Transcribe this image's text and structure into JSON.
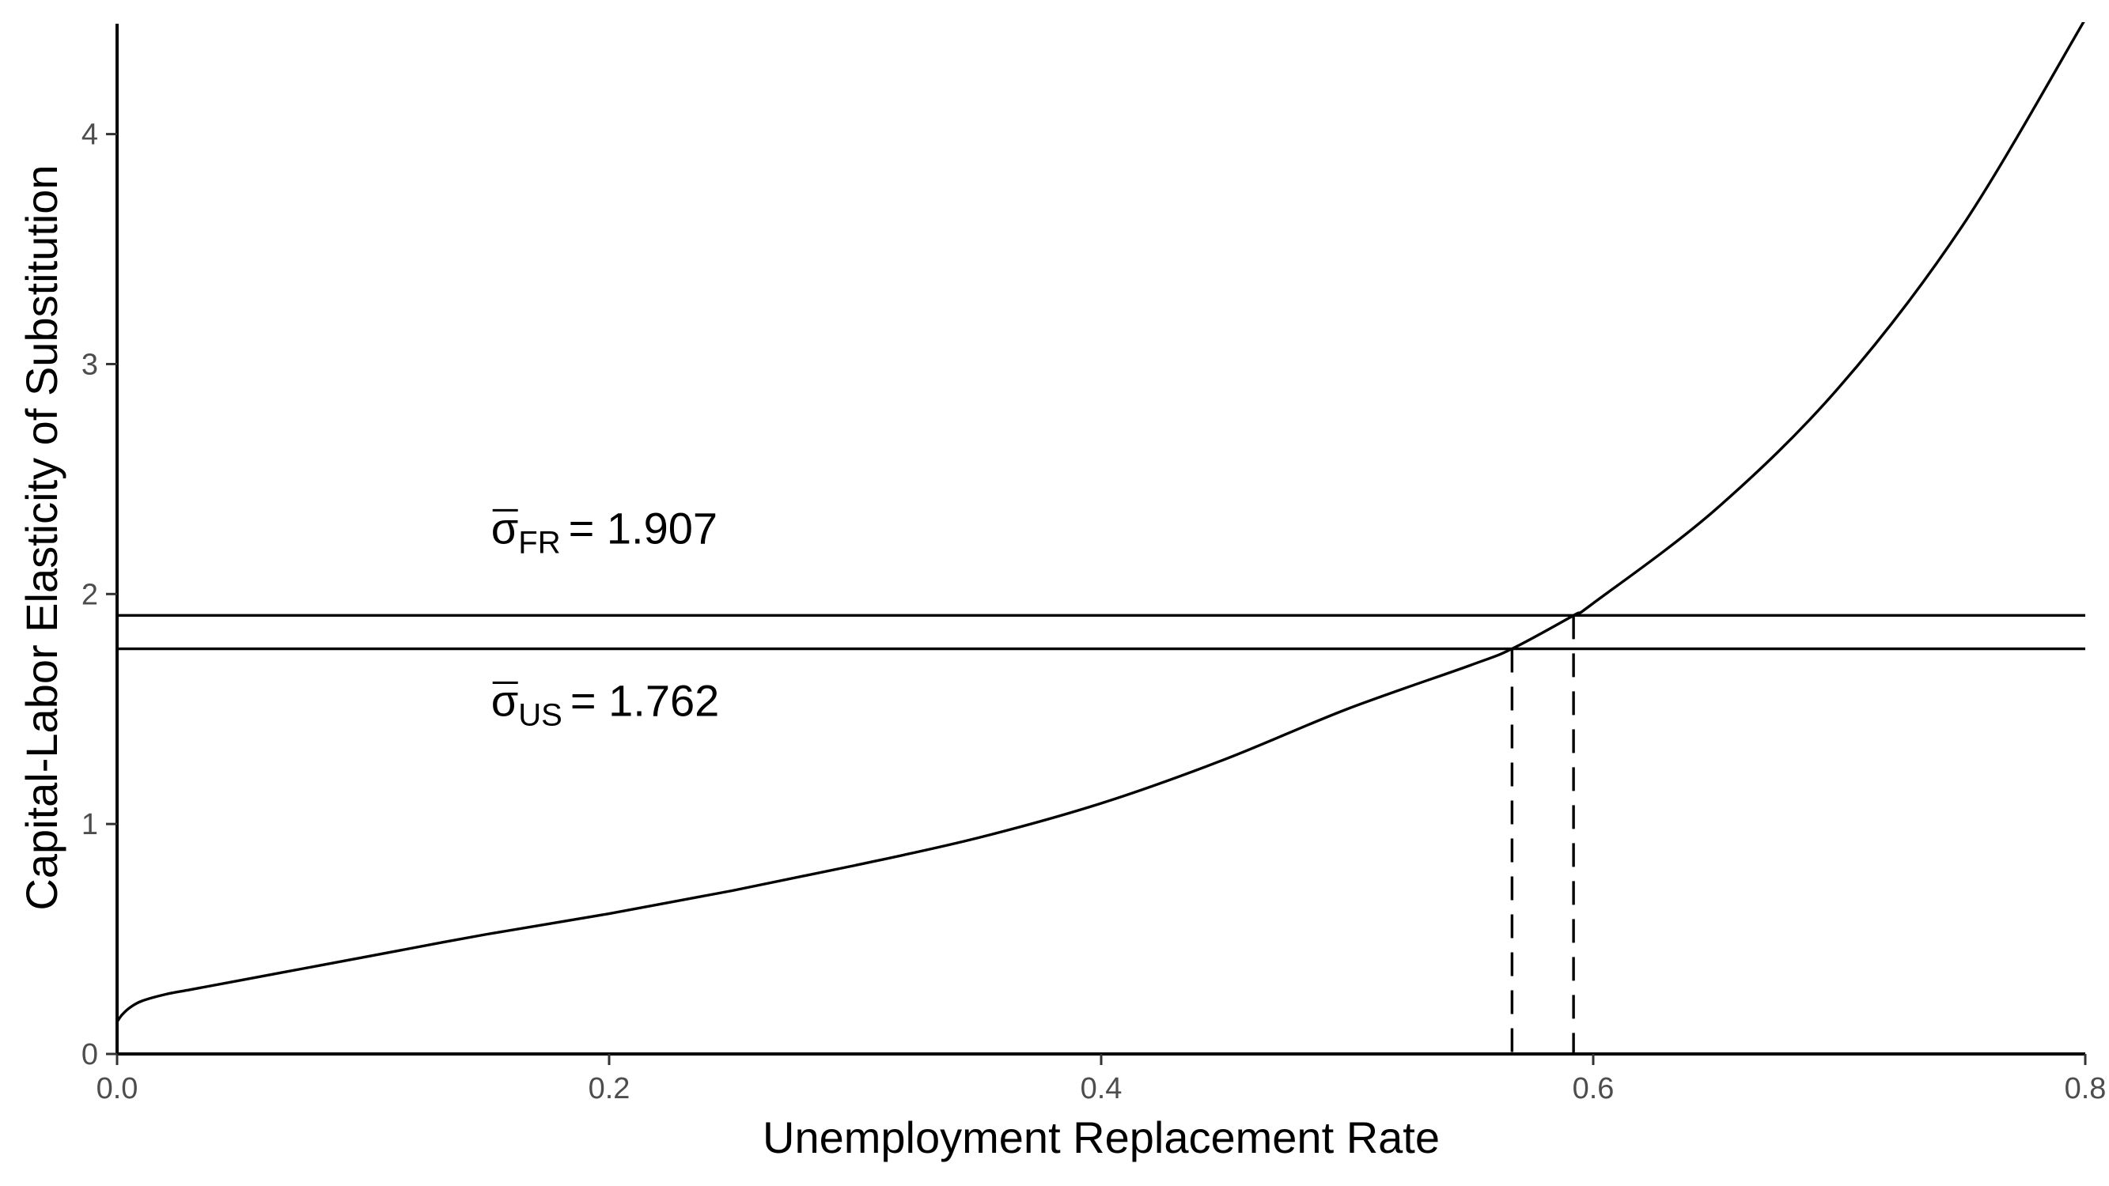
{
  "chart_data": {
    "type": "line",
    "xlabel": "Unemployment Replacement Rate",
    "ylabel": "Capital-Labor Elasticity of Substitution",
    "xlim": [
      0.0,
      0.8
    ],
    "ylim": [
      0,
      4.48
    ],
    "x_ticks": [
      0.0,
      0.2,
      0.4,
      0.6,
      0.8
    ],
    "x_tick_labels": [
      "0.0",
      "0.2",
      "0.4",
      "0.6",
      "0.8"
    ],
    "y_ticks": [
      0,
      1,
      2,
      3,
      4
    ],
    "y_tick_labels": [
      "0",
      "1",
      "2",
      "3",
      "4"
    ],
    "grid": false,
    "series": [
      {
        "x": [
          0.0,
          0.002,
          0.005,
          0.01,
          0.02,
          0.03,
          0.05,
          0.075,
          0.1,
          0.15,
          0.2,
          0.25,
          0.3,
          0.35,
          0.4,
          0.45,
          0.5,
          0.55,
          0.567,
          0.592,
          0.6,
          0.65,
          0.7,
          0.75,
          0.8
        ],
        "y": [
          0.14,
          0.17,
          0.2,
          0.23,
          0.26,
          0.28,
          0.32,
          0.37,
          0.42,
          0.52,
          0.61,
          0.71,
          0.82,
          0.94,
          1.09,
          1.28,
          1.5,
          1.69,
          1.762,
          1.907,
          1.96,
          2.37,
          2.9,
          3.6,
          4.5
        ]
      }
    ],
    "reference_lines": {
      "horizontal": [
        {
          "y": 1.907,
          "style": "solid"
        },
        {
          "y": 1.762,
          "style": "solid"
        }
      ],
      "vertical": [
        {
          "x": 0.567,
          "y_top": 1.762,
          "style": "dashed"
        },
        {
          "x": 0.592,
          "y_top": 1.907,
          "style": "dashed"
        }
      ]
    },
    "annotations": [
      {
        "symbol": "σ",
        "subscript": "FR",
        "text": "= 1.907",
        "x": 0.152,
        "y": 2.22
      },
      {
        "symbol": "σ",
        "subscript": "US",
        "text": "= 1.762",
        "x": 0.152,
        "y": 1.47
      }
    ]
  }
}
